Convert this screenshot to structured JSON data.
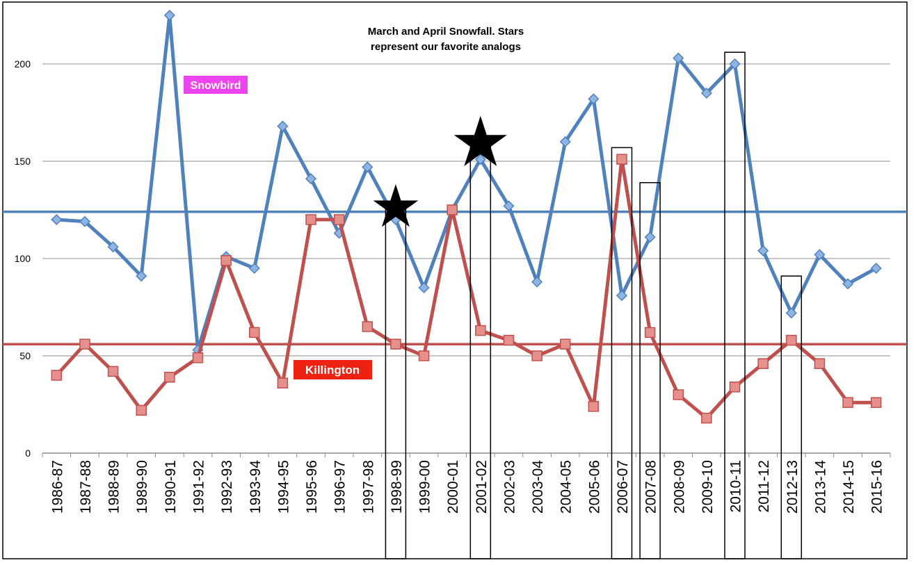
{
  "chart_data": {
    "type": "line",
    "title": "March and April Snowfall. Stars represent our favorite analogs",
    "title_lines": [
      "March and April Snowfall. Stars",
      "represent our favorite analogs"
    ],
    "xlabel": "",
    "ylabel": "",
    "ylim": [
      0,
      225
    ],
    "yticks": [
      0,
      50,
      100,
      150,
      200
    ],
    "grid": true,
    "categories": [
      "1986-87",
      "1987-88",
      "1988-89",
      "1989-90",
      "1990-91",
      "1991-92",
      "1992-93",
      "1993-94",
      "1994-95",
      "1995-96",
      "1996-97",
      "1997-98",
      "1998-99",
      "1999-00",
      "2000-01",
      "2001-02",
      "2002-03",
      "2003-04",
      "2004-05",
      "2005-06",
      "2006-07",
      "2007-08",
      "2008-09",
      "2009-10",
      "2010-11",
      "2011-12",
      "2012-13",
      "2013-14",
      "2014-15",
      "2015-16"
    ],
    "series": [
      {
        "name": "Snowbird",
        "color": "#4f81bd",
        "marker": "diamond",
        "average": 124,
        "label_color": "#ee44ee",
        "values": [
          120,
          119,
          106,
          91,
          225,
          53,
          101,
          95,
          168,
          141,
          113,
          147,
          120,
          85,
          125,
          151,
          127,
          88,
          160,
          182,
          81,
          111,
          203,
          185,
          200,
          104,
          72,
          102,
          87,
          95
        ]
      },
      {
        "name": "Killington",
        "color": "#c0504d",
        "marker": "square",
        "average": 56,
        "label_color": "#ee2211",
        "values": [
          40,
          56,
          42,
          22,
          39,
          49,
          99,
          62,
          36,
          120,
          120,
          65,
          56,
          50,
          125,
          63,
          58,
          50,
          56,
          24,
          151,
          62,
          30,
          18,
          34,
          46,
          58,
          46,
          26,
          26
        ]
      }
    ],
    "highlighted_seasons": [
      {
        "category": "1998-99",
        "box_top_value": 125,
        "star": true
      },
      {
        "category": "2001-02",
        "box_top_value": 158,
        "star": true
      },
      {
        "category": "2006-07",
        "box_top_value": 157,
        "star": false
      },
      {
        "category": "2007-08",
        "box_top_value": 139,
        "star": false
      },
      {
        "category": "2010-11",
        "box_top_value": 206,
        "star": false
      },
      {
        "category": "2012-13",
        "box_top_value": 91,
        "star": false
      }
    ]
  }
}
